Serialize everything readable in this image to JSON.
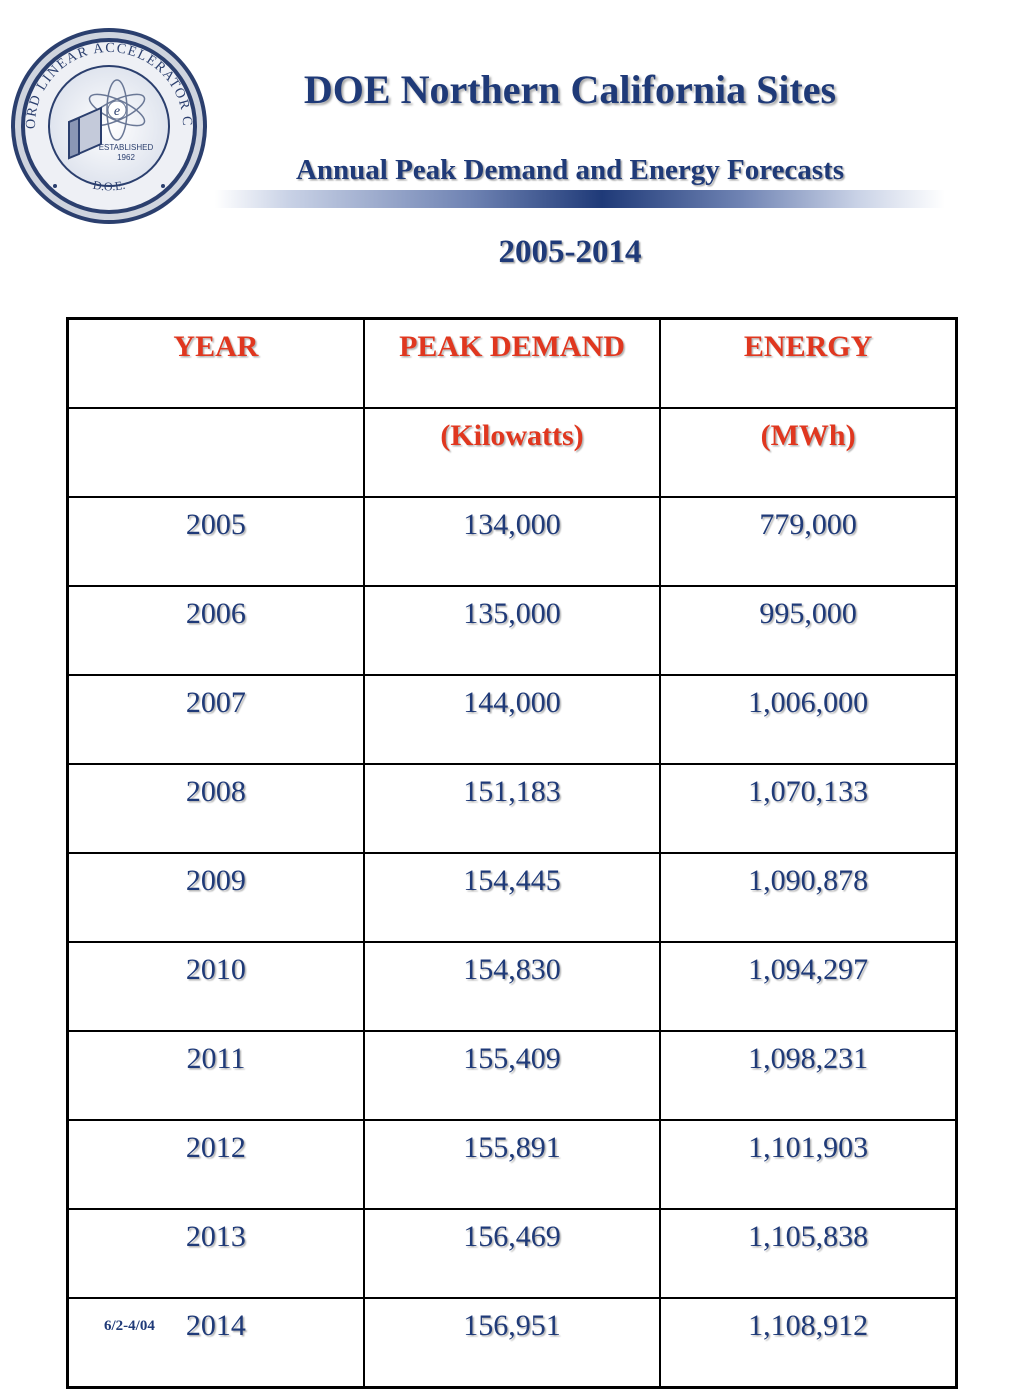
{
  "seal": {
    "ring_text_top": "STANFORD LINEAR ACCELERATOR CENTER",
    "ring_text_bottom": "D.O.E.",
    "established_label": "ESTABLISHED",
    "established_year": "1962"
  },
  "header": {
    "title": "DOE Northern California Sites",
    "subtitle": "Annual Peak Demand and Energy Forecasts",
    "years": "2005-2014"
  },
  "table": {
    "headers": [
      "YEAR",
      "PEAK DEMAND",
      "ENERGY"
    ],
    "units": [
      "",
      "(Kilowatts)",
      "(MWh)"
    ],
    "rows": [
      [
        "2005",
        "134,000",
        "779,000"
      ],
      [
        "2006",
        "135,000",
        "995,000"
      ],
      [
        "2007",
        "144,000",
        "1,006,000"
      ],
      [
        "2008",
        "151,183",
        "1,070,133"
      ],
      [
        "2009",
        "154,445",
        "1,090,878"
      ],
      [
        "2010",
        "154,830",
        "1,094,297"
      ],
      [
        "2011",
        "155,409",
        "1,098,231"
      ],
      [
        "2012",
        "155,891",
        "1,101,903"
      ],
      [
        "2013",
        "156,469",
        "1,105,838"
      ],
      [
        "2014",
        "156,951",
        "1,108,912"
      ]
    ]
  },
  "footer": {
    "code": "6/2-4/04"
  },
  "colors": {
    "title": "#1f3a78",
    "header_text": "#e0371f",
    "body_text": "#1f3a78"
  }
}
